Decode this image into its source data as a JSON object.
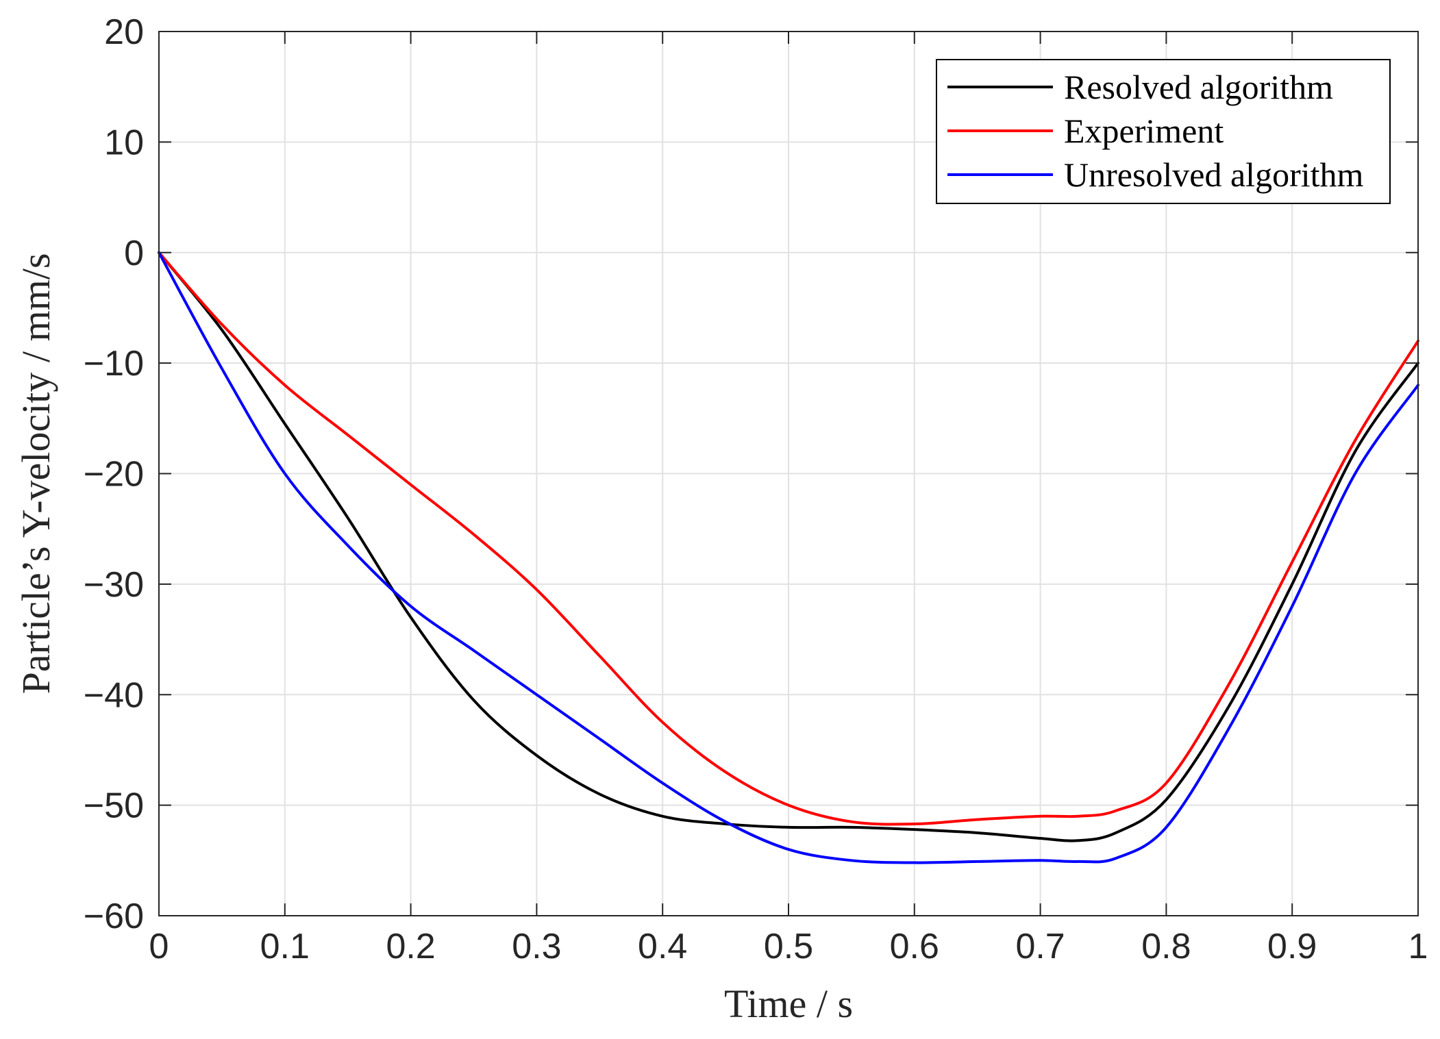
{
  "chart_data": {
    "type": "line",
    "title": "",
    "xlabel": "Time / s",
    "ylabel": "Particle’s Y-velocity / mm/s",
    "xlim": [
      0,
      1
    ],
    "ylim": [
      -60,
      20
    ],
    "grid": true,
    "legend_position": "top-right",
    "xticks": [
      0,
      0.1,
      0.2,
      0.3,
      0.4,
      0.5,
      0.6,
      0.7,
      0.8,
      0.9,
      1
    ],
    "xtick_labels": [
      "0",
      "0.1",
      "0.2",
      "0.3",
      "0.4",
      "0.5",
      "0.6",
      "0.7",
      "0.8",
      "0.9",
      "1"
    ],
    "yticks": [
      20,
      10,
      0,
      -10,
      -20,
      -30,
      -40,
      -50,
      -60
    ],
    "ytick_labels": [
      "20",
      "10",
      "0",
      "−10",
      "−20",
      "−30",
      "−40",
      "−50",
      "−60"
    ],
    "series": [
      {
        "name": "Resolved algorithm",
        "color": "#000000",
        "x": [
          0,
          0.05,
          0.1,
          0.15,
          0.2,
          0.25,
          0.3,
          0.35,
          0.4,
          0.45,
          0.5,
          0.55,
          0.6,
          0.65,
          0.7,
          0.73,
          0.76,
          0.8,
          0.85,
          0.9,
          0.95,
          1
        ],
        "y": [
          0,
          -7,
          -15.5,
          -24,
          -33,
          -40.5,
          -45.5,
          -49,
          -51,
          -51.7,
          -52,
          -52,
          -52.2,
          -52.5,
          -53,
          -53.2,
          -52.5,
          -49.5,
          -41,
          -30,
          -18,
          -10
        ]
      },
      {
        "name": "Experiment",
        "color": "#ff0000",
        "x": [
          0,
          0.05,
          0.1,
          0.15,
          0.2,
          0.25,
          0.3,
          0.35,
          0.4,
          0.45,
          0.5,
          0.55,
          0.6,
          0.65,
          0.7,
          0.73,
          0.76,
          0.8,
          0.85,
          0.9,
          0.95,
          1
        ],
        "y": [
          0,
          -6.5,
          -12,
          -16.5,
          -21,
          -25.5,
          -30.5,
          -36.5,
          -42.5,
          -47,
          -50,
          -51.5,
          -51.7,
          -51.3,
          -51,
          -51,
          -50.5,
          -48,
          -39,
          -28,
          -17,
          -8
        ]
      },
      {
        "name": "Unresolved algorithm",
        "color": "#0000ff",
        "x": [
          0,
          0.05,
          0.1,
          0.15,
          0.2,
          0.25,
          0.3,
          0.35,
          0.4,
          0.45,
          0.5,
          0.55,
          0.6,
          0.65,
          0.7,
          0.73,
          0.76,
          0.8,
          0.85,
          0.9,
          0.95,
          1
        ],
        "y": [
          0,
          -10.5,
          -20,
          -26.5,
          -32,
          -36,
          -40,
          -44,
          -48,
          -51.5,
          -54,
          -55,
          -55.2,
          -55.1,
          -55,
          -55.1,
          -54.8,
          -52,
          -43,
          -32,
          -20,
          -12
        ]
      }
    ]
  }
}
